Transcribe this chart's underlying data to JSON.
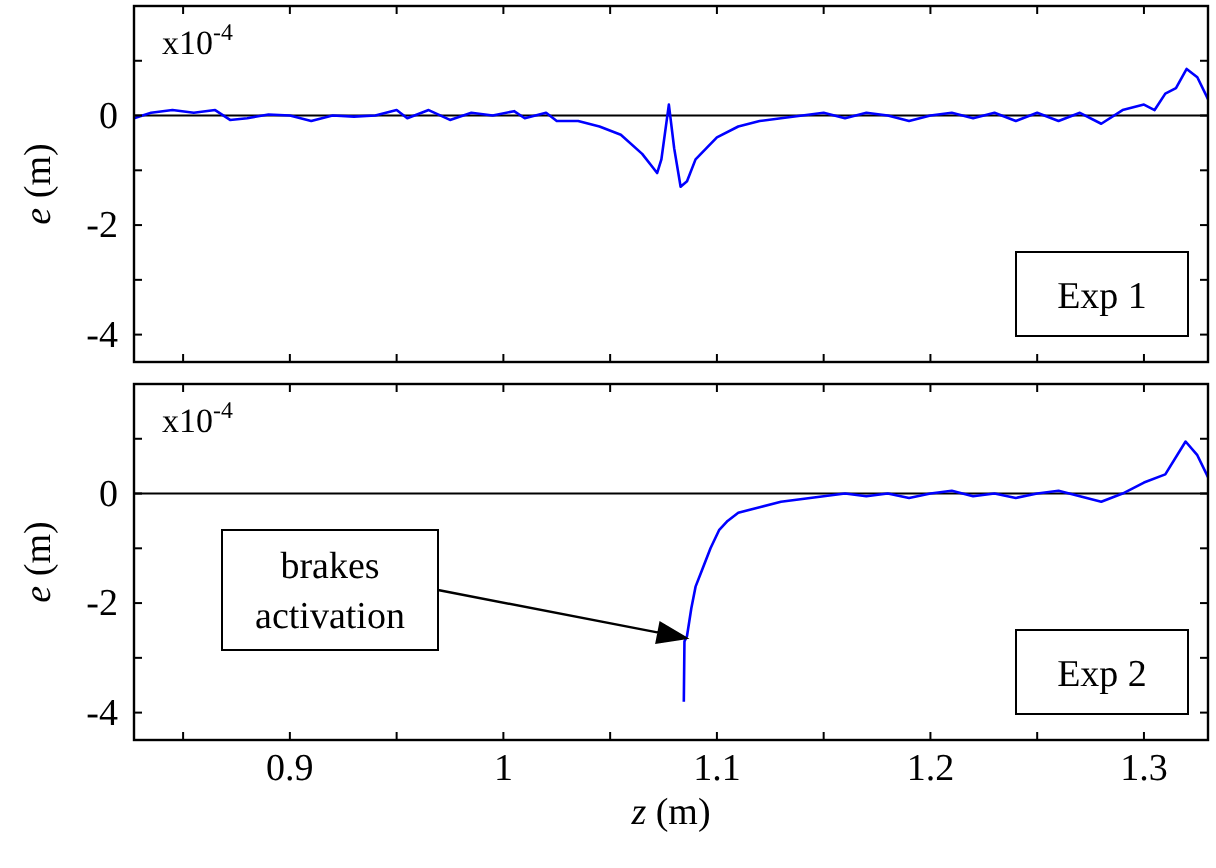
{
  "chart_data": [
    {
      "type": "line",
      "ylabel": "e (m)",
      "xlim": [
        0.827,
        1.33
      ],
      "ylim": [
        -4.5,
        2
      ],
      "tick_labels": "y",
      "xticks": [
        {
          "value": 0.85,
          "label": null
        },
        0.9,
        {
          "value": 0.95,
          "label": null
        },
        1,
        {
          "value": 1.05,
          "label": null
        },
        1.1,
        {
          "value": 1.15,
          "label": null
        },
        1.2,
        {
          "value": 1.25,
          "label": null
        },
        1.3
      ],
      "yticks": [
        {
          "value": 1,
          "label": null
        },
        0,
        {
          "value": -1,
          "label": null
        },
        -2,
        {
          "value": -3,
          "label": null
        },
        -4
      ],
      "ref_lines": [
        {
          "axis": "y",
          "value": 0,
          "color": "#000000"
        }
      ],
      "annotations": [
        "x10$^{-4}$",
        "Exp 1"
      ],
      "series": [
        {
          "color": "#0000ff",
          "x": [
            0.827,
            0.835,
            0.845,
            0.855,
            0.865,
            0.872,
            0.88,
            0.89,
            0.9,
            0.91,
            0.92,
            0.93,
            0.94,
            0.95,
            0.955,
            0.965,
            0.975,
            0.985,
            0.995,
            1.005,
            1.01,
            1.02,
            1.025,
            1.035,
            1.045,
            1.055,
            1.065,
            1.07,
            1.072,
            1.074,
            1.0775,
            1.08,
            1.083,
            1.086,
            1.09,
            1.095,
            1.1,
            1.11,
            1.12,
            1.13,
            1.14,
            1.15,
            1.16,
            1.17,
            1.18,
            1.19,
            1.2,
            1.21,
            1.22,
            1.23,
            1.24,
            1.25,
            1.26,
            1.27,
            1.28,
            1.29,
            1.3,
            1.305,
            1.31,
            1.315,
            1.32,
            1.325,
            1.33
          ],
          "values": [
            -0.05,
            0.05,
            0.1,
            0.05,
            0.1,
            -0.08,
            -0.05,
            0.02,
            0,
            -0.1,
            0,
            -0.02,
            0,
            0.1,
            -0.05,
            0.1,
            -0.08,
            0.05,
            0,
            0.08,
            -0.05,
            0.05,
            -0.1,
            -0.1,
            -0.2,
            -0.35,
            -0.7,
            -0.95,
            -1.05,
            -0.8,
            0.2,
            -0.6,
            -1.3,
            -1.2,
            -0.8,
            -0.6,
            -0.4,
            -0.2,
            -0.1,
            -0.05,
            0,
            0.05,
            -0.05,
            0.05,
            0,
            -0.1,
            0,
            0.05,
            -0.05,
            0.05,
            -0.1,
            0.05,
            -0.1,
            0.05,
            -0.15,
            0.1,
            0.2,
            0.1,
            0.4,
            0.5,
            0.85,
            0.7,
            0.3
          ]
        }
      ]
    },
    {
      "type": "line",
      "ylabel": "e (m)",
      "xlabel": "z (m)",
      "xlim": [
        0.827,
        1.33
      ],
      "ylim": [
        -4.5,
        2
      ],
      "xticks": [
        {
          "value": 0.85,
          "label": null
        },
        0.9,
        {
          "value": 0.95,
          "label": null
        },
        1,
        {
          "value": 1.05,
          "label": null
        },
        1.1,
        {
          "value": 1.15,
          "label": null
        },
        1.2,
        {
          "value": 1.25,
          "label": null
        },
        1.3
      ],
      "yticks": [
        {
          "value": 1,
          "label": null
        },
        0,
        {
          "value": -1,
          "label": null
        },
        -2,
        {
          "value": -3,
          "label": null
        },
        -4
      ],
      "ref_lines": [
        {
          "axis": "y",
          "value": 0,
          "color": "#000000"
        }
      ],
      "annotations": [
        "x10$^{-4}$",
        "Exp 2",
        "brakes activation"
      ],
      "series": [
        {
          "color": "#0000ff",
          "x": [
            1.0845,
            1.0848,
            1.086,
            1.088,
            1.09,
            1.093,
            1.097,
            1.101,
            1.105,
            1.11,
            1.12,
            1.13,
            1.14,
            1.15,
            1.16,
            1.17,
            1.18,
            1.19,
            1.2,
            1.21,
            1.22,
            1.23,
            1.24,
            1.25,
            1.26,
            1.27,
            1.28,
            1.29,
            1.3,
            1.31,
            1.3195,
            1.325,
            1.33
          ],
          "values": [
            -3.8,
            -2.7,
            -2.6,
            -2.1,
            -1.7,
            -1.4,
            -1,
            -0.67,
            -0.5,
            -0.35,
            -0.25,
            -0.15,
            -0.1,
            -0.05,
            0,
            -0.05,
            0,
            -0.08,
            0,
            0.05,
            -0.05,
            0,
            -0.08,
            0,
            0.05,
            -0.05,
            -0.15,
            0,
            0.2,
            0.35,
            0.95,
            0.7,
            0.3
          ]
        }
      ]
    }
  ]
}
